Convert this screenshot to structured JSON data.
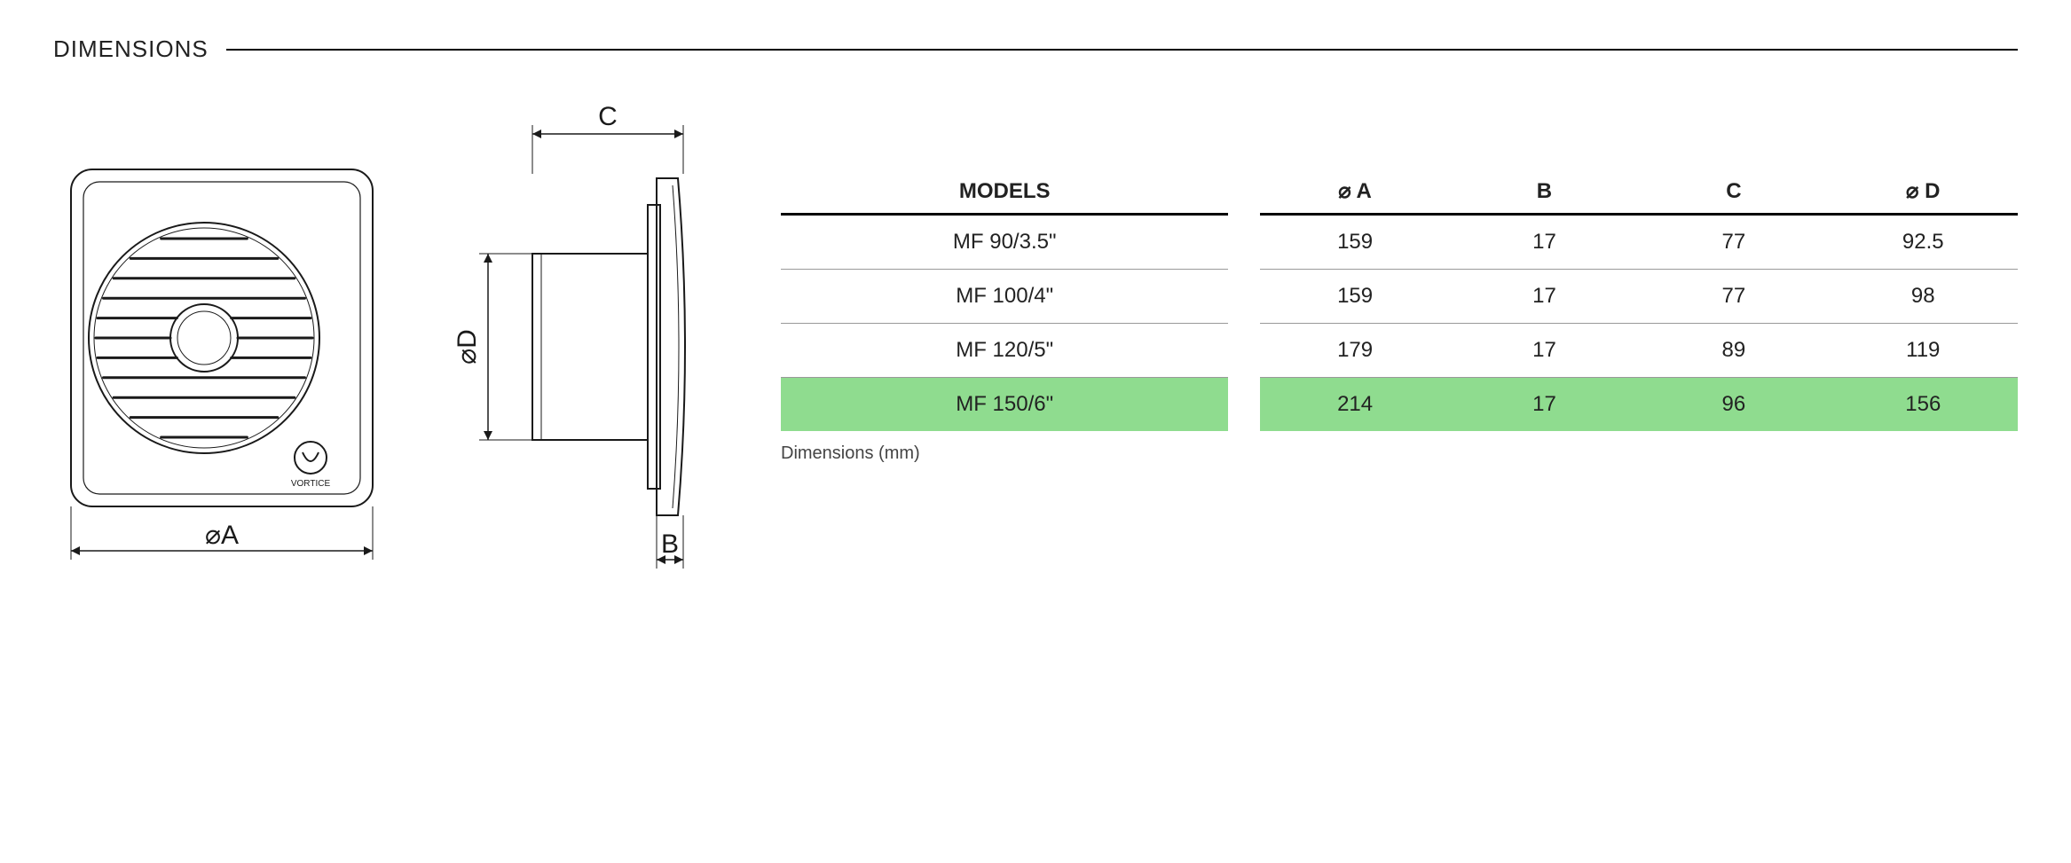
{
  "title": "DIMENSIONS",
  "caption": "Dimensions (mm)",
  "table": {
    "columns": [
      "MODELS",
      "⌀ A",
      "B",
      "C",
      "⌀ D"
    ],
    "rows": [
      {
        "cells": [
          "MF 90/3.5\"",
          "159",
          "17",
          "77",
          "92.5"
        ],
        "highlight": false
      },
      {
        "cells": [
          "MF 100/4\"",
          "159",
          "17",
          "77",
          "98"
        ],
        "highlight": false
      },
      {
        "cells": [
          "MF 120/5\"",
          "179",
          "17",
          "89",
          "119"
        ],
        "highlight": false
      },
      {
        "cells": [
          "MF 150/6\"",
          "214",
          "17",
          "96",
          "156"
        ],
        "highlight": true
      }
    ],
    "header_font_weight": "700",
    "font_size": 24,
    "highlight_color": "#8fdc8f",
    "row_border_color": "#999999",
    "header_border_color": "#000000"
  },
  "drawings": {
    "front": {
      "dim_label": "⌀A",
      "logo_text": "VORTICE",
      "stroke": "#1a1a1a",
      "grille_lines": 11
    },
    "side": {
      "dim_label_top": "C",
      "dim_label_left": "⌀D",
      "dim_label_bottom": "B",
      "stroke": "#1a1a1a"
    },
    "label_fontsize": 30,
    "arrow_size": 10
  },
  "colors": {
    "background": "#ffffff",
    "text": "#222222",
    "rule": "#000000"
  }
}
